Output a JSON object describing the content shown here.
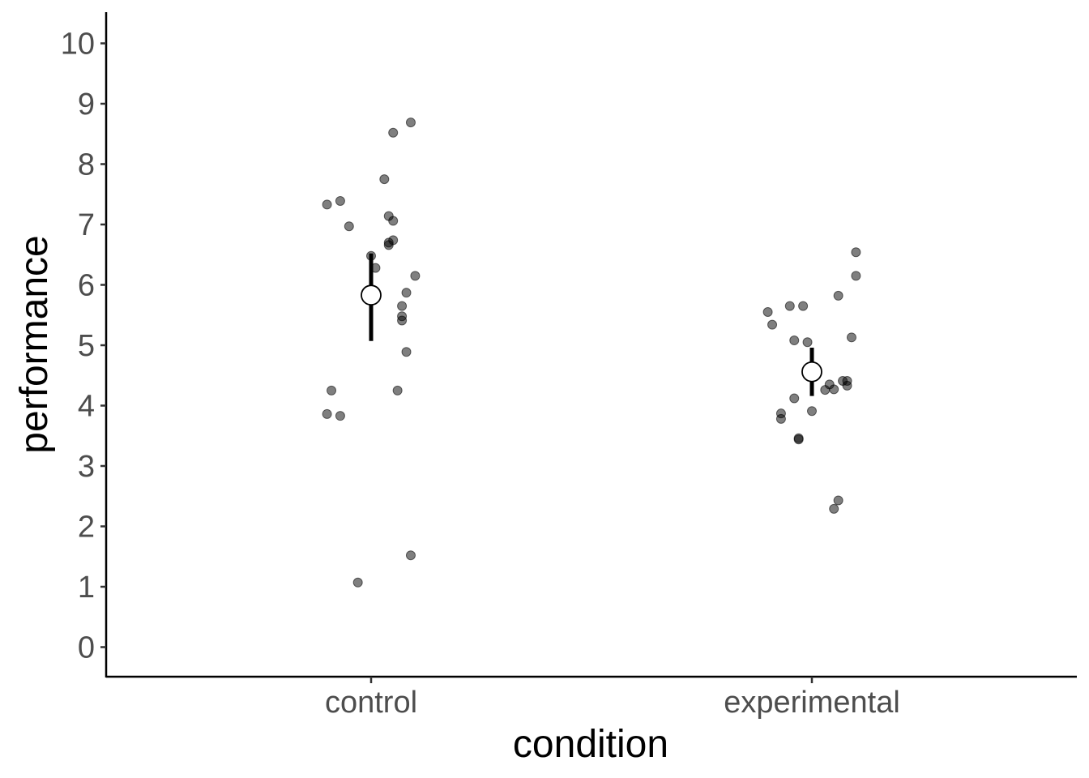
{
  "chart_data": {
    "type": "scatter",
    "xlabel": "condition",
    "ylabel": "performance",
    "categories": [
      "control",
      "experimental"
    ],
    "ylim": [
      -0.5,
      10.5
    ],
    "yticks": [
      0,
      1,
      2,
      3,
      4,
      5,
      6,
      7,
      8,
      9,
      10
    ],
    "grid": false,
    "legend": "none",
    "colors": {
      "points": "#000000",
      "point_opacity": 0.5,
      "summary_fill": "#ffffff",
      "axis": "#000000",
      "tick_text": "#4d4d4d"
    },
    "observations": [
      {
        "category": "control",
        "values": [
          8.69,
          8.52,
          7.75,
          7.39,
          7.33,
          7.14,
          7.06,
          6.97,
          6.74,
          6.7,
          6.66,
          6.48,
          6.28,
          6.15,
          5.87,
          5.65,
          5.48,
          5.41,
          4.89,
          4.25,
          4.25,
          3.86,
          3.83,
          1.52,
          1.07
        ],
        "jitter": [
          0.09,
          0.05,
          0.03,
          -0.07,
          -0.1,
          0.04,
          0.05,
          -0.05,
          0.05,
          0.04,
          0.04,
          0.0,
          0.01,
          0.1,
          0.08,
          0.07,
          0.07,
          0.07,
          0.08,
          -0.09,
          0.06,
          -0.1,
          -0.07,
          0.09,
          -0.03
        ]
      },
      {
        "category": "experimental",
        "values": [
          6.54,
          6.15,
          5.82,
          5.65,
          5.65,
          5.55,
          5.34,
          5.13,
          5.08,
          5.05,
          4.41,
          4.41,
          4.35,
          4.33,
          4.27,
          4.26,
          4.12,
          3.91,
          3.87,
          3.78,
          3.46,
          3.44,
          2.43,
          2.29
        ],
        "jitter": [
          0.1,
          0.1,
          0.06,
          -0.05,
          -0.02,
          -0.1,
          -0.09,
          0.09,
          -0.04,
          -0.01,
          0.07,
          0.08,
          0.04,
          0.08,
          0.05,
          0.03,
          -0.04,
          0.0,
          -0.07,
          -0.07,
          -0.03,
          -0.03,
          0.06,
          0.05
        ]
      }
    ],
    "summary": [
      {
        "category": "control",
        "mean": 5.83,
        "ci_low": 5.07,
        "ci_high": 6.52
      },
      {
        "category": "experimental",
        "mean": 4.56,
        "ci_low": 4.16,
        "ci_high": 4.96
      }
    ]
  }
}
